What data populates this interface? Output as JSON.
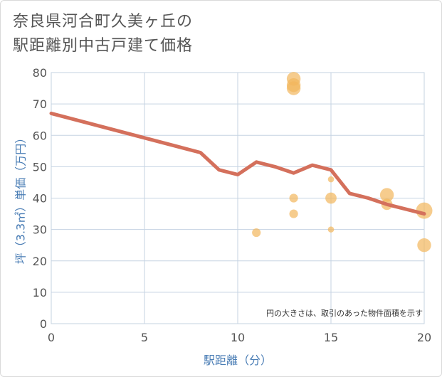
{
  "title_line1": "奈良県河合町久美ヶ丘の",
  "title_line2": "駅距離別中古戸建て価格",
  "chart_data": {
    "type": "scatter",
    "xlabel": "駅距離（分）",
    "ylabel": "坪（3.3㎡）単価（万円）",
    "xlim": [
      0,
      20
    ],
    "ylim": [
      0,
      80
    ],
    "x_ticks": [
      "0",
      "5",
      "10",
      "15",
      "20"
    ],
    "y_ticks": [
      "0",
      "10",
      "20",
      "30",
      "40",
      "50",
      "60",
      "70",
      "80"
    ],
    "grid": true,
    "note": "円の大きさは、取引のあった物件面積を示す",
    "points": [
      {
        "x": 11,
        "y": 29,
        "size": 2
      },
      {
        "x": 13,
        "y": 78,
        "size": 4
      },
      {
        "x": 13,
        "y": 76,
        "size": 4
      },
      {
        "x": 13,
        "y": 75,
        "size": 4
      },
      {
        "x": 13,
        "y": 40,
        "size": 2
      },
      {
        "x": 13,
        "y": 35,
        "size": 2
      },
      {
        "x": 15,
        "y": 46,
        "size": 1
      },
      {
        "x": 15,
        "y": 40,
        "size": 3
      },
      {
        "x": 15,
        "y": 30,
        "size": 1
      },
      {
        "x": 18,
        "y": 41,
        "size": 4
      },
      {
        "x": 18,
        "y": 38,
        "size": 3
      },
      {
        "x": 20,
        "y": 36,
        "size": 5
      },
      {
        "x": 20,
        "y": 25,
        "size": 4
      }
    ],
    "trend_line": {
      "x": [
        0,
        8,
        9,
        10,
        11,
        12,
        13,
        14,
        15,
        16,
        17,
        18,
        19,
        20
      ],
      "y": [
        67,
        54.5,
        49,
        47.5,
        51.5,
        50,
        48,
        50.5,
        49,
        41.5,
        40,
        38,
        36.5,
        35
      ]
    },
    "colors": {
      "point": "#f2b65c",
      "trend": "#d4705c",
      "grid": "#c5d3e2",
      "axis_text": "#4a7db5"
    }
  }
}
